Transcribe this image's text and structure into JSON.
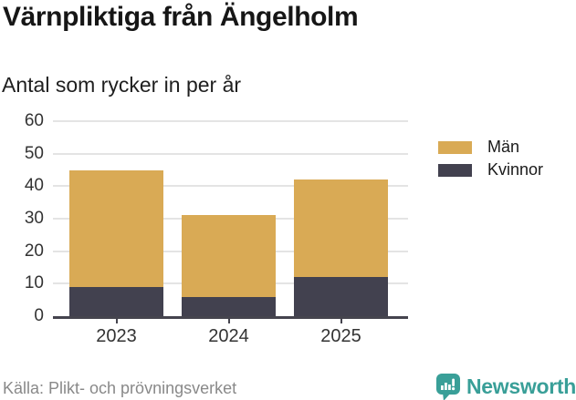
{
  "header": {
    "title": "Värnpliktiga från Ängelholm",
    "subtitle": "Antal som rycker in per år"
  },
  "legend": {
    "items": [
      {
        "label": "Män",
        "color": "#d9aa55"
      },
      {
        "label": "Kvinnor",
        "color": "#42414f"
      }
    ]
  },
  "footer": {
    "source": "Källa: Plikt- och prövningsverket",
    "brand": "Newsworthy"
  },
  "colors": {
    "man_gold": "#d9aa55",
    "kvinnor_dark": "#42414f",
    "axis": "#45444e",
    "gridline": "#e4e4e4",
    "brand_teal": "#399f98",
    "source_gray": "#898989"
  },
  "chart_data": {
    "type": "bar",
    "stacked": true,
    "title": "Värnpliktiga från Ängelholm",
    "subtitle": "Antal som rycker in per år",
    "categories": [
      "2023",
      "2024",
      "2025"
    ],
    "series": [
      {
        "name": "Kvinnor",
        "color": "#42414f",
        "values": [
          9,
          6,
          12
        ]
      },
      {
        "name": "Män",
        "color": "#d9aa55",
        "values": [
          36,
          25,
          30
        ]
      }
    ],
    "totals": [
      45,
      31,
      42
    ],
    "xlabel": "",
    "ylabel": "",
    "ylim": [
      0,
      60
    ],
    "yticks": [
      0,
      10,
      20,
      30,
      40,
      50,
      60
    ],
    "grid": true,
    "legend_position": "right",
    "source": "Källa: Plikt- och prövningsverket"
  }
}
